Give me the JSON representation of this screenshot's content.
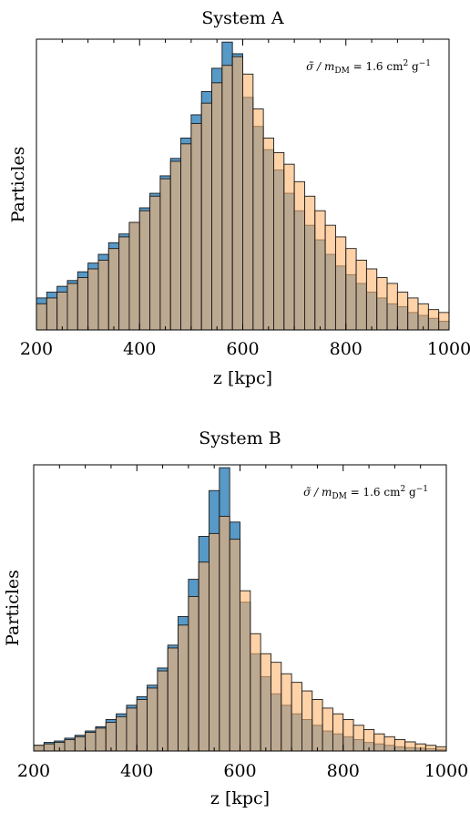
{
  "chart_data": [
    {
      "type": "bar",
      "title": "System A",
      "xlabel": "z [kpc]",
      "ylabel": "Particles",
      "annotation": "σ̃ / m",
      "annotation_sub": "DM",
      "annotation_value": " = 1.6  cm",
      "annotation_sup1": "2",
      "annotation_unit": " g",
      "annotation_sup2": "−1",
      "xlim": [
        200,
        1000
      ],
      "ylim": [
        0,
        1
      ],
      "xticks": [
        200,
        400,
        600,
        800,
        1000
      ],
      "bin_start": 200,
      "bin_width": 20,
      "grid": false,
      "series": [
        {
          "color": "#1f77b4",
          "values": [
            0.11,
            0.13,
            0.15,
            0.17,
            0.2,
            0.23,
            0.26,
            0.3,
            0.33,
            0.37,
            0.42,
            0.47,
            0.53,
            0.59,
            0.66,
            0.74,
            0.82,
            0.9,
            0.99,
            0.95,
            0.8,
            0.7,
            0.62,
            0.55,
            0.47,
            0.41,
            0.36,
            0.31,
            0.26,
            0.22,
            0.19,
            0.16,
            0.13,
            0.11,
            0.09,
            0.08,
            0.06,
            0.05,
            0.04,
            0.03
          ]
        },
        {
          "color": "#ffb46e",
          "values": [
            0.09,
            0.11,
            0.13,
            0.16,
            0.18,
            0.21,
            0.24,
            0.28,
            0.32,
            0.37,
            0.41,
            0.46,
            0.52,
            0.58,
            0.64,
            0.71,
            0.78,
            0.85,
            0.91,
            0.94,
            0.88,
            0.76,
            0.66,
            0.61,
            0.57,
            0.51,
            0.46,
            0.41,
            0.36,
            0.32,
            0.28,
            0.24,
            0.21,
            0.18,
            0.16,
            0.13,
            0.11,
            0.09,
            0.07,
            0.06
          ]
        }
      ]
    },
    {
      "type": "bar",
      "title": "System B",
      "xlabel": "z [kpc]",
      "ylabel": "Particles",
      "annotation": "σ̃ / m",
      "annotation_sub": "DM",
      "annotation_value": " = 1.6  cm",
      "annotation_sup1": "2",
      "annotation_unit": " g",
      "annotation_sup2": "−1",
      "xlim": [
        200,
        1000
      ],
      "ylim": [
        0,
        1
      ],
      "xticks": [
        200,
        400,
        600,
        800,
        1000
      ],
      "bin_start": 200,
      "bin_width": 20,
      "grid": false,
      "series": [
        {
          "color": "#1f77b4",
          "values": [
            0.02,
            0.03,
            0.035,
            0.045,
            0.055,
            0.07,
            0.085,
            0.11,
            0.13,
            0.16,
            0.19,
            0.23,
            0.29,
            0.37,
            0.47,
            0.6,
            0.75,
            0.91,
            0.99,
            0.8,
            0.52,
            0.34,
            0.26,
            0.2,
            0.16,
            0.13,
            0.11,
            0.09,
            0.07,
            0.06,
            0.05,
            0.04,
            0.03,
            0.025,
            0.02,
            0.015,
            0.012,
            0.01,
            0.008,
            0.006
          ]
        },
        {
          "color": "#ffb46e",
          "values": [
            0.02,
            0.025,
            0.03,
            0.04,
            0.05,
            0.065,
            0.08,
            0.1,
            0.12,
            0.15,
            0.18,
            0.22,
            0.28,
            0.36,
            0.44,
            0.54,
            0.66,
            0.76,
            0.82,
            0.74,
            0.56,
            0.41,
            0.34,
            0.31,
            0.27,
            0.24,
            0.21,
            0.18,
            0.15,
            0.13,
            0.11,
            0.09,
            0.075,
            0.06,
            0.05,
            0.04,
            0.032,
            0.025,
            0.02,
            0.015
          ]
        }
      ]
    }
  ]
}
